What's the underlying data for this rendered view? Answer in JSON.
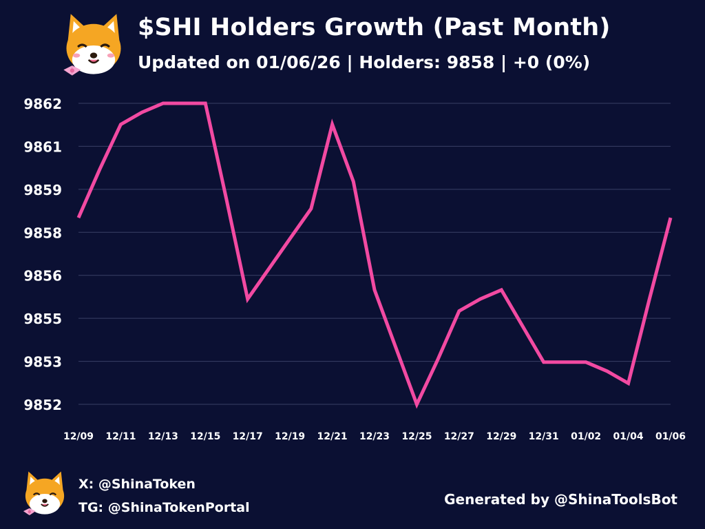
{
  "header": {
    "title": "$SHI Holders Growth (Past Month)",
    "subtitle": "Updated on 01/06/26 | Holders: 9858 | +0 (0%)"
  },
  "footer": {
    "x_handle": "X: @ShinaToken",
    "tg_handle": "TG: @ShinaTokenPortal",
    "credit": "Generated by @ShinaToolsBot"
  },
  "colors": {
    "background": "#0b1033",
    "line": "#f24aa2",
    "grid": "#3a4066",
    "text": "#ffffff"
  },
  "chart_data": {
    "type": "line",
    "title": "$SHI Holders Growth (Past Month)",
    "xlabel": "",
    "ylabel": "",
    "grid": true,
    "x_ticks": [
      "12/09",
      "12/11",
      "12/13",
      "12/15",
      "12/17",
      "12/19",
      "12/21",
      "12/23",
      "12/25",
      "12/27",
      "12/29",
      "12/31",
      "01/02",
      "01/04",
      "01/06"
    ],
    "y_ticks": [
      "9862",
      "9861",
      "9859",
      "9858",
      "9856",
      "9855",
      "9853",
      "9852"
    ],
    "ylim": [
      9852,
      9862
    ],
    "series": [
      {
        "name": "",
        "x": [
          "12/09",
          "12/10",
          "12/11",
          "12/12",
          "12/13",
          "12/14",
          "12/15",
          "12/16",
          "12/17",
          "12/18",
          "12/19",
          "12/20",
          "12/21",
          "12/22",
          "12/23",
          "12/24",
          "12/25",
          "12/26",
          "12/27",
          "12/28",
          "12/29",
          "12/30",
          "12/31",
          "01/01",
          "01/02",
          "01/03",
          "01/04",
          "01/05",
          "01/06"
        ],
        "values": [
          9858.2,
          9859.8,
          9861.3,
          9861.7,
          9862,
          9862,
          9862,
          9858.8,
          9855.5,
          9856.5,
          9857.5,
          9858.5,
          9861.3,
          9859.4,
          9855.8,
          9853.9,
          9852,
          9853.5,
          9855.1,
          9855.5,
          9855.8,
          9854.6,
          9853.4,
          9853.4,
          9853.4,
          9853.1,
          9852.7,
          9855.5,
          9858.2
        ]
      }
    ]
  }
}
